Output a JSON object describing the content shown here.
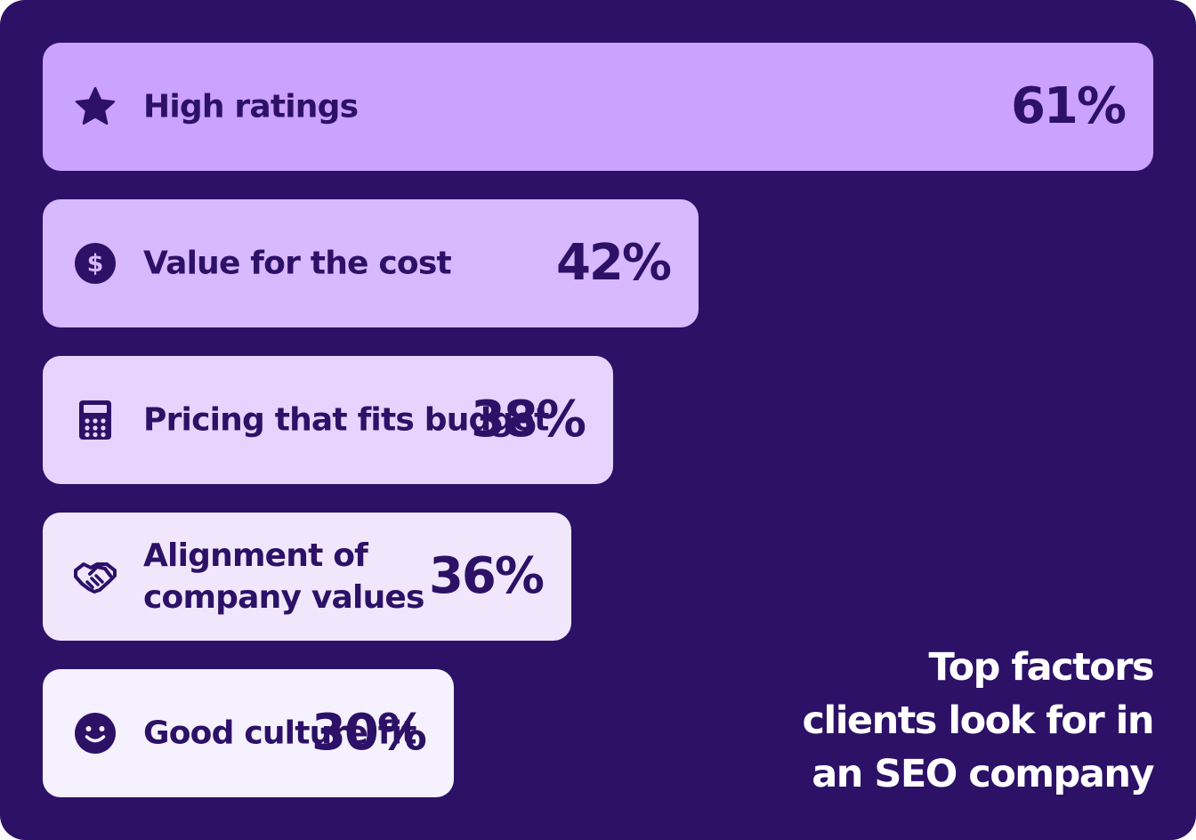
{
  "chart_data": {
    "type": "bar",
    "orientation": "horizontal",
    "title": "Top factors clients look for in an SEO company",
    "title_lines": [
      "Top factors",
      "clients look for in",
      "an SEO company"
    ],
    "categories": [
      "High ratings",
      "Value for the cost",
      "Pricing that fits budget",
      "Alignment of company values",
      "Good culture fit"
    ],
    "values": [
      61,
      42,
      38,
      36,
      30
    ],
    "value_labels": [
      "61%",
      "42%",
      "38%",
      "36%",
      "30%"
    ],
    "unit": "%",
    "grid": false
  },
  "bars": [
    {
      "label_lines": [
        "High ratings"
      ],
      "value_label": "61%",
      "icon": "star-icon",
      "color": "#cba2fe"
    },
    {
      "label_lines": [
        "Value for the cost"
      ],
      "value_label": "42%",
      "icon": "dollar-icon",
      "color": "#d8b8ff"
    },
    {
      "label_lines": [
        "Pricing that fits budget"
      ],
      "value_label": "38%",
      "icon": "calculator-icon",
      "color": "#e6d4ff"
    },
    {
      "label_lines": [
        "Alignment of",
        "company values"
      ],
      "value_label": "36%",
      "icon": "handshake-icon",
      "color": "#f0e7fd"
    },
    {
      "label_lines": [
        "Good culture fit"
      ],
      "value_label": "30%",
      "icon": "smiley-icon",
      "color": "#f6f1fe"
    }
  ],
  "colors": {
    "background": "#2c1167",
    "text_dark": "#2c1167",
    "caption_text": "#ffffff"
  }
}
